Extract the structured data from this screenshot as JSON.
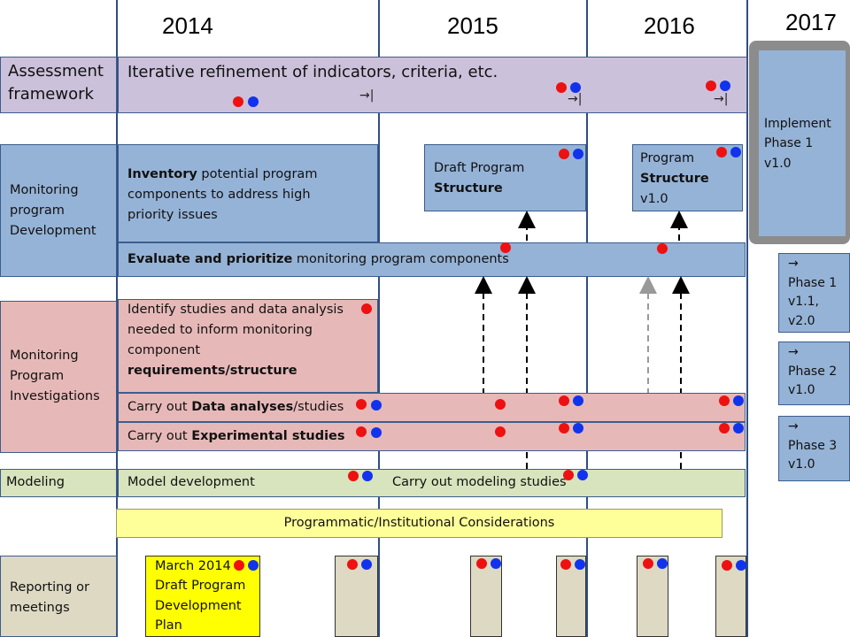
{
  "years": [
    "2014",
    "2015",
    "2016",
    "2017"
  ],
  "rows": {
    "assessment": {
      "label_line1": "Assessment",
      "label_line2": "framework",
      "bar_text": "Iterative refinement of indicators, criteria, etc.",
      "milestone_marker": "→|"
    },
    "development": {
      "label_line1": "Monitoring",
      "label_line2": "program",
      "label_line3": "Development",
      "inventory_bold": "Inventory",
      "inventory_line1": " potential program",
      "inventory_line2": "components to address high",
      "inventory_line3": "priority issues",
      "draft_line1": "Draft Program",
      "draft_line2": "Structure",
      "program_line1": "Program",
      "program_line2": "Structure",
      "program_line3": "v1.0",
      "evaluate_bold": "Evaluate and prioritize",
      "evaluate_rest": " monitoring program components"
    },
    "investigations": {
      "label_line1": "Monitoring",
      "label_line2": "Program",
      "label_line3": "Investigations",
      "identify_line1": "Identify studies and data analysis",
      "identify_line2": "needed to inform monitoring",
      "identify_line3": "component",
      "identify_line4": "requirements/structure",
      "data_prefix": "Carry out ",
      "data_bold": "Data analyses",
      "data_suffix": "/studies",
      "exp_prefix": "Carry out ",
      "exp_bold": "Experimental studies"
    },
    "modeling": {
      "label": "Modeling",
      "model_dev": "Model development",
      "modeling_studies": "Carry out modeling studies"
    },
    "programmatic": "Programmatic/Institutional Considerations",
    "reporting": {
      "label_line1": "Reporting or",
      "label_line2": "meetings",
      "march_line1": "March 2014",
      "march_line2": "Draft Program",
      "march_line3": "Development",
      "march_line4": "Plan"
    }
  },
  "phases": {
    "implement_line1": "Implement",
    "implement_line2": "Phase 1",
    "implement_line3": "v1.0",
    "arrow": "→",
    "phase1_line1": "Phase 1",
    "phase1_line2": "v1.1,",
    "phase1_line3": "v2.0",
    "phase2_line1": "Phase 2",
    "phase2_line2": "v1.0",
    "phase3_line1": "Phase 3",
    "phase3_line2": "v1.0"
  },
  "colors": {
    "assessment_fill": "#ccc1da",
    "development_fill": "#95b3d7",
    "investigations_fill": "#e6b9b8",
    "modeling_fill": "#d7e4bd",
    "programmatic_fill": "#ffff99",
    "reporting_fill": "#ddd9c3",
    "march_fill": "#ffff00",
    "red_dot": "#ee1111",
    "blue_dot": "#1133ee",
    "gridline": "#2f4e80",
    "implement_frame": "#8c8c8c"
  }
}
